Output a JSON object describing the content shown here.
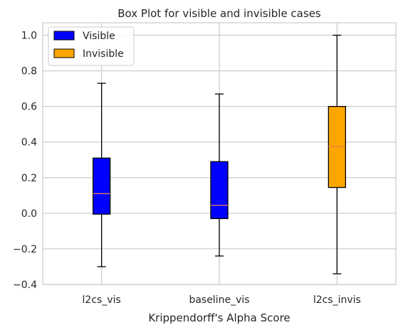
{
  "chart_data": {
    "type": "box",
    "title": "Box Plot for visible and invisible cases",
    "xlabel": "Krippendorff's Alpha Score",
    "ylabel": "",
    "ylim": [
      -0.4,
      1.07
    ],
    "yticks": [
      -0.4,
      -0.2,
      0.0,
      0.2,
      0.4,
      0.6,
      0.8,
      1.0
    ],
    "ytick_labels": [
      "−0.4",
      "−0.2",
      "0.0",
      "0.2",
      "0.4",
      "0.6",
      "0.8",
      "1.0"
    ],
    "grid": true,
    "legend_position": "top-left",
    "legend": [
      {
        "label": "Visible",
        "color": "#0000ff"
      },
      {
        "label": "Invisible",
        "color": "#ffa500"
      }
    ],
    "categories": [
      "l2cs_vis",
      "baseline_vis",
      "l2cs_invis"
    ],
    "boxes": [
      {
        "category": "l2cs_vis",
        "whisker_low": -0.3,
        "q1": -0.005,
        "median": 0.11,
        "q3": 0.31,
        "whisker_high": 0.73,
        "color": "#0000ff"
      },
      {
        "category": "baseline_vis",
        "whisker_low": -0.24,
        "q1": -0.03,
        "median": 0.045,
        "q3": 0.29,
        "whisker_high": 0.67,
        "color": "#0000ff"
      },
      {
        "category": "l2cs_invis",
        "whisker_low": -0.34,
        "q1": 0.145,
        "median": 0.375,
        "q3": 0.6,
        "whisker_high": 1.0,
        "color": "#ffa500"
      }
    ],
    "median_color": "#e08050"
  }
}
